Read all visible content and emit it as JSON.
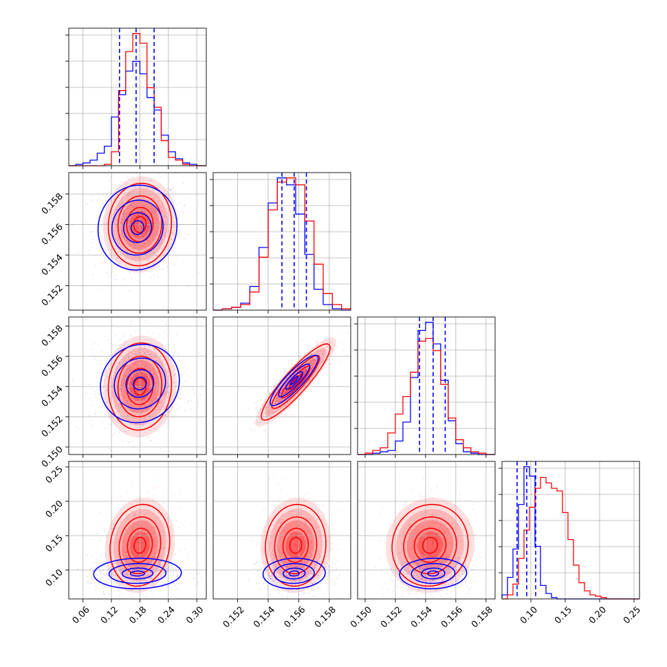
{
  "chart_data": {
    "type": "corner",
    "grid": true,
    "colors": {
      "blue": "#0000ff",
      "red": "#ff0000"
    },
    "series": [
      {
        "color": "#0000ff"
      },
      {
        "color": "#ff0000"
      }
    ],
    "parameters": [
      {
        "range": [
          0.03,
          0.32
        ],
        "ticks": [
          "0.06",
          "0.12",
          "0.18",
          "0.24",
          "0.30"
        ],
        "tick_values": [
          0.06,
          0.12,
          0.18,
          0.24,
          0.3
        ]
      },
      {
        "range": [
          0.1504,
          0.1594
        ],
        "ticks": [
          "0.152",
          "0.154",
          "0.156",
          "0.158"
        ],
        "tick_values": [
          0.152,
          0.154,
          0.156,
          0.158
        ]
      },
      {
        "range": [
          0.1495,
          0.1586
        ],
        "ticks": [
          "0.150",
          "0.152",
          "0.154",
          "0.156",
          "0.158"
        ],
        "tick_values": [
          0.15,
          0.152,
          0.154,
          0.156,
          0.158
        ]
      },
      {
        "range": [
          0.058,
          0.258
        ],
        "ticks": [
          "0.10",
          "0.15",
          "0.20",
          "0.25"
        ],
        "tick_values": [
          0.1,
          0.15,
          0.2,
          0.25
        ]
      }
    ],
    "quantile_lines": [
      [
        0.137,
        0.172,
        0.21
      ],
      [
        0.1549,
        0.1557,
        0.1565
      ],
      [
        0.1536,
        0.1545,
        0.1553
      ],
      [
        0.08,
        0.094,
        0.107
      ]
    ],
    "marginals": [
      {
        "edges": [
          0.03,
          0.045,
          0.06,
          0.075,
          0.09,
          0.105,
          0.12,
          0.135,
          0.15,
          0.165,
          0.18,
          0.195,
          0.21,
          0.225,
          0.24,
          0.255,
          0.27,
          0.285,
          0.3,
          0.315,
          0.32
        ],
        "blue": [
          0,
          1,
          2,
          4,
          9,
          14,
          35,
          51,
          68,
          75,
          66,
          49,
          40,
          22,
          10,
          5,
          2,
          1,
          0,
          0
        ],
        "red": [
          0,
          0,
          0,
          0,
          0,
          1,
          10,
          54,
          82,
          95,
          88,
          56,
          42,
          18,
          6,
          4,
          1,
          0,
          0,
          0
        ]
      },
      {
        "edges": [
          0.1504,
          0.151,
          0.1516,
          0.1522,
          0.1528,
          0.1534,
          0.154,
          0.1546,
          0.1552,
          0.1558,
          0.1564,
          0.157,
          0.1576,
          0.1582,
          0.1588,
          0.1594
        ],
        "blue": [
          0,
          1,
          2,
          5,
          17,
          45,
          77,
          95,
          90,
          69,
          40,
          15,
          4,
          1,
          0
        ],
        "red": [
          0,
          1,
          2,
          4,
          13,
          38,
          72,
          92,
          95,
          90,
          64,
          33,
          12,
          4,
          1
        ]
      },
      {
        "edges": [
          0.1495,
          0.15,
          0.1505,
          0.151,
          0.1515,
          0.152,
          0.1525,
          0.153,
          0.1535,
          0.154,
          0.1545,
          0.155,
          0.1555,
          0.156,
          0.1565,
          0.157,
          0.1575,
          0.158,
          0.1586
        ],
        "blue": [
          0,
          0,
          1,
          2,
          3,
          10,
          24,
          57,
          92,
          98,
          82,
          55,
          25,
          8,
          2,
          1,
          0,
          0
        ],
        "red": [
          0,
          1,
          3,
          5,
          16,
          30,
          43,
          61,
          84,
          86,
          77,
          52,
          27,
          11,
          5,
          2,
          1,
          0
        ]
      },
      {
        "edges": [
          0.058,
          0.066,
          0.074,
          0.082,
          0.09,
          0.098,
          0.106,
          0.114,
          0.122,
          0.13,
          0.138,
          0.146,
          0.154,
          0.162,
          0.17,
          0.178,
          0.186,
          0.194,
          0.202,
          0.21,
          0.218,
          0.226,
          0.234,
          0.242,
          0.25,
          0.258
        ],
        "blue": [
          3,
          16,
          37,
          70,
          98,
          91,
          39,
          10,
          4,
          1,
          0,
          0,
          0,
          0,
          0,
          0,
          0,
          0,
          0,
          0,
          0,
          0,
          0,
          0,
          0
        ],
        "red": [
          0,
          3,
          11,
          30,
          51,
          68,
          82,
          90,
          86,
          82,
          80,
          64,
          44,
          25,
          12,
          6,
          3,
          2,
          1,
          0,
          0,
          0,
          0,
          0,
          0
        ]
      }
    ],
    "joint": [
      {
        "x": 0,
        "y": 1,
        "blue": {
          "mean": [
            0.175,
            0.1558
          ],
          "sd": [
            0.045,
            0.0015
          ],
          "rho": 0.05
        },
        "red": {
          "mean": [
            0.18,
            0.156
          ],
          "sd": [
            0.037,
            0.0015
          ],
          "rho": 0.05
        }
      },
      {
        "x": 0,
        "y": 2,
        "blue": {
          "mean": [
            0.18,
            0.1542
          ],
          "sd": [
            0.045,
            0.0014
          ],
          "rho": 0.08
        },
        "red": {
          "mean": [
            0.18,
            0.154
          ],
          "sd": [
            0.037,
            0.0016
          ],
          "rho": 0.05
        }
      },
      {
        "x": 1,
        "y": 2,
        "blue": {
          "mean": [
            0.1557,
            0.1544
          ],
          "sd": [
            0.00085,
            0.0009
          ],
          "rho": 0.88
        },
        "red": {
          "mean": [
            0.1558,
            0.1543
          ],
          "sd": [
            0.00125,
            0.0014
          ],
          "rho": 0.9
        }
      },
      {
        "x": 0,
        "y": 3,
        "blue": {
          "mean": [
            0.175,
            0.095
          ],
          "sd": [
            0.05,
            0.012
          ],
          "rho": 0.05
        },
        "red": {
          "mean": [
            0.18,
            0.136
          ],
          "sd": [
            0.035,
            0.033
          ],
          "rho": 0.1
        }
      },
      {
        "x": 1,
        "y": 3,
        "blue": {
          "mean": [
            0.1557,
            0.095
          ],
          "sd": [
            0.0011,
            0.012
          ],
          "rho": 0.05
        },
        "red": {
          "mean": [
            0.1558,
            0.136
          ],
          "sd": [
            0.0011,
            0.033
          ],
          "rho": 0.05
        }
      },
      {
        "x": 2,
        "y": 3,
        "blue": {
          "mean": [
            0.1545,
            0.095
          ],
          "sd": [
            0.0012,
            0.012
          ],
          "rho": 0.05
        },
        "red": {
          "mean": [
            0.1543,
            0.136
          ],
          "sd": [
            0.0014,
            0.033
          ],
          "rho": 0.05
        }
      }
    ]
  }
}
